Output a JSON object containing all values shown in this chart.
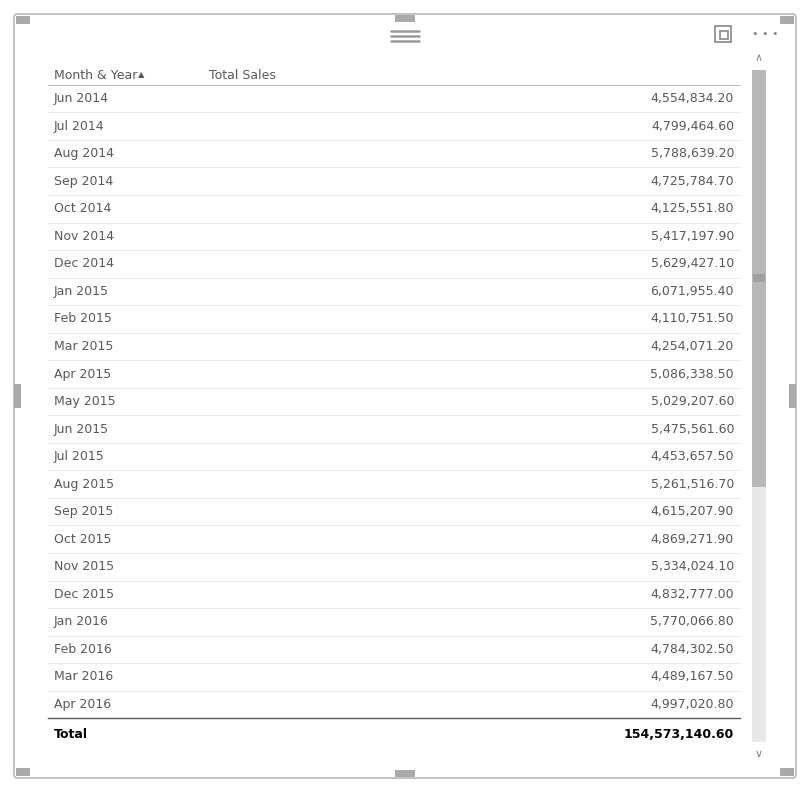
{
  "col_headers": [
    "Month & Year",
    "Total Sales"
  ],
  "rows": [
    [
      "Jun 2014",
      "4,554,834.20"
    ],
    [
      "Jul 2014",
      "4,799,464.60"
    ],
    [
      "Aug 2014",
      "5,788,639.20"
    ],
    [
      "Sep 2014",
      "4,725,784.70"
    ],
    [
      "Oct 2014",
      "4,125,551.80"
    ],
    [
      "Nov 2014",
      "5,417,197.90"
    ],
    [
      "Dec 2014",
      "5,629,427.10"
    ],
    [
      "Jan 2015",
      "6,071,955.40"
    ],
    [
      "Feb 2015",
      "4,110,751.50"
    ],
    [
      "Mar 2015",
      "4,254,071.20"
    ],
    [
      "Apr 2015",
      "5,086,338.50"
    ],
    [
      "May 2015",
      "5,029,207.60"
    ],
    [
      "Jun 2015",
      "5,475,561.60"
    ],
    [
      "Jul 2015",
      "4,453,657.50"
    ],
    [
      "Aug 2015",
      "5,261,516.70"
    ],
    [
      "Sep 2015",
      "4,615,207.90"
    ],
    [
      "Oct 2015",
      "4,869,271.90"
    ],
    [
      "Nov 2015",
      "5,334,024.10"
    ],
    [
      "Dec 2015",
      "4,832,777.00"
    ],
    [
      "Jan 2016",
      "5,770,066.80"
    ],
    [
      "Feb 2016",
      "4,784,302.50"
    ],
    [
      "Mar 2016",
      "4,489,167.50"
    ],
    [
      "Apr 2016",
      "4,997,020.80"
    ]
  ],
  "total_label": "Total",
  "total_value": "154,573,140.60",
  "bg_color": "#ffffff",
  "header_text_color": "#595959",
  "row_text_color": "#595959",
  "total_text_color": "#000000",
  "header_line_color": "#c0c0c0",
  "row_line_color": "#e0e0e0",
  "total_line_color": "#595959",
  "outer_border_color": "#b8b8b8",
  "scrollbar_color": "#b8b8b8",
  "scrollbar_bg": "#e8e8e8",
  "handle_color": "#aaaaaa",
  "header_fontsize": 9,
  "row_fontsize": 9,
  "total_fontsize": 9,
  "figwidth": 8.1,
  "figheight": 7.92,
  "dpi": 100
}
